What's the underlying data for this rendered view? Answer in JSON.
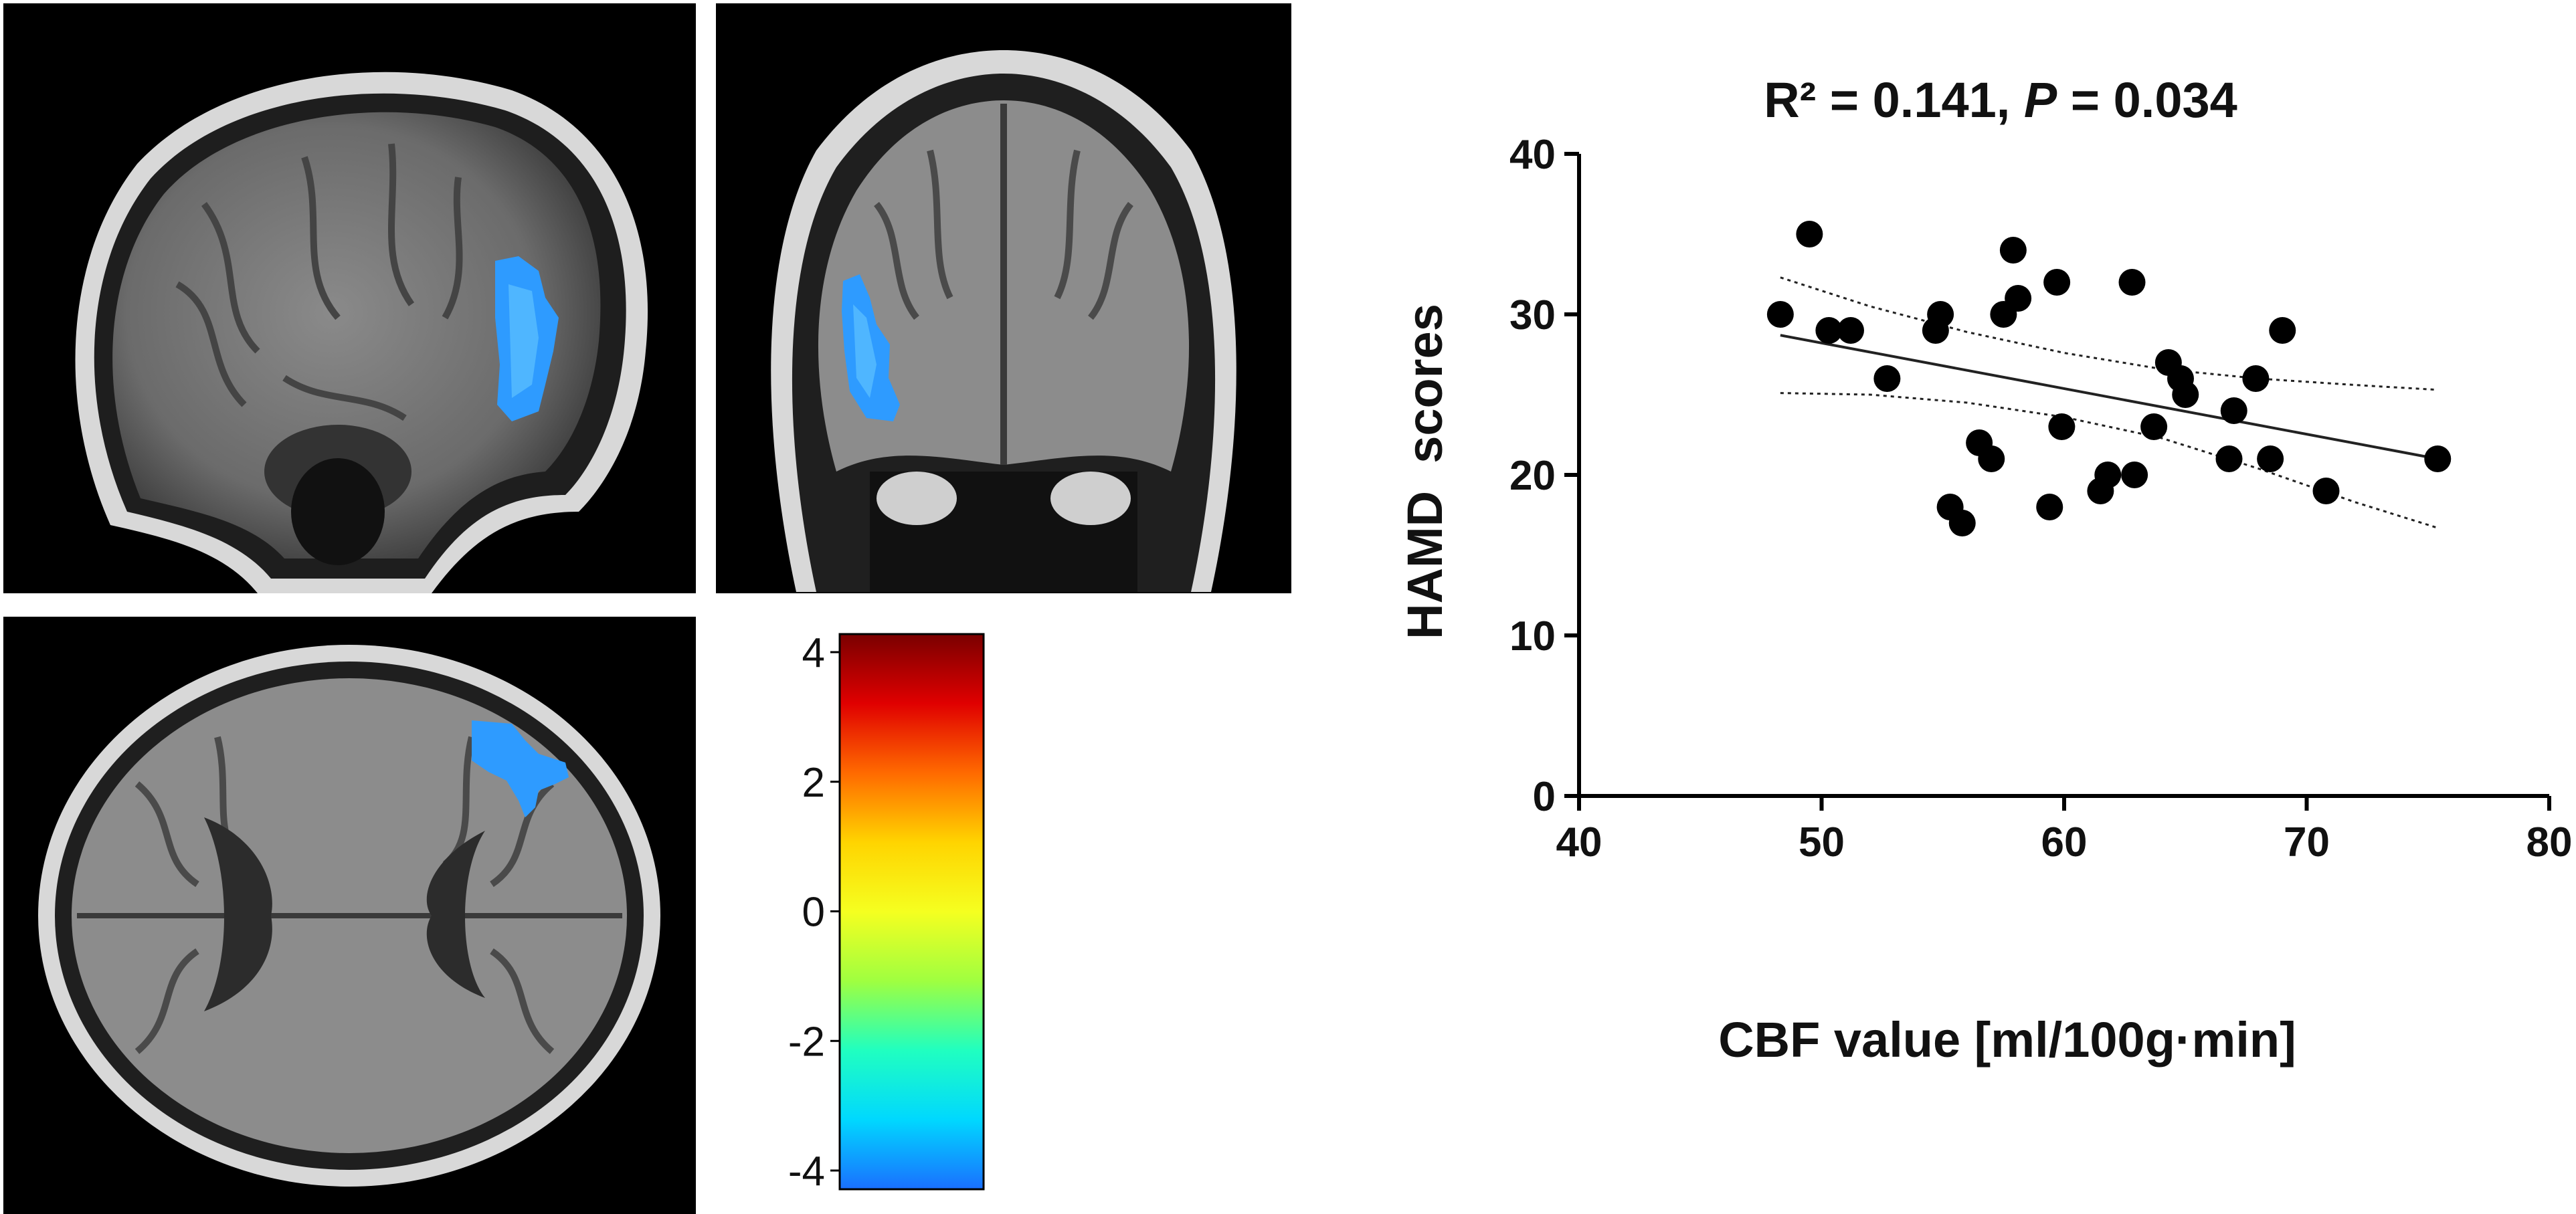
{
  "brain_views": [
    {
      "view": "sagittal"
    },
    {
      "view": "coronal"
    },
    {
      "view": "axial"
    }
  ],
  "colorbar": {
    "ticks": [
      "4",
      "2",
      "0",
      "-2",
      "-4"
    ],
    "colors": [
      "#7a0000",
      "#e00000",
      "#ff6a00",
      "#ffd400",
      "#f5ff20",
      "#9fff40",
      "#20ffc0",
      "#00d8ff",
      "#1a6fff"
    ]
  },
  "chart_data": {
    "type": "scatter",
    "title_main": "R² = 0.141, ",
    "title_italic": "P",
    "title_tail": " = 0.034",
    "xlabel": "CBF value [ml/100g·min]",
    "ylabel": "HAMD  scores",
    "xlim": [
      40,
      80
    ],
    "ylim": [
      0,
      40
    ],
    "xticks": [
      40,
      50,
      60,
      70,
      80
    ],
    "yticks": [
      0,
      10,
      20,
      30,
      40
    ],
    "points": [
      {
        "x": 48.3,
        "y": 30
      },
      {
        "x": 49.5,
        "y": 35
      },
      {
        "x": 50.3,
        "y": 29
      },
      {
        "x": 51.2,
        "y": 29
      },
      {
        "x": 52.7,
        "y": 26
      },
      {
        "x": 54.7,
        "y": 29
      },
      {
        "x": 54.9,
        "y": 30
      },
      {
        "x": 55.3,
        "y": 18
      },
      {
        "x": 55.8,
        "y": 17
      },
      {
        "x": 56.5,
        "y": 22
      },
      {
        "x": 57.0,
        "y": 21
      },
      {
        "x": 57.5,
        "y": 30
      },
      {
        "x": 57.9,
        "y": 34
      },
      {
        "x": 58.1,
        "y": 31
      },
      {
        "x": 59.4,
        "y": 18
      },
      {
        "x": 59.7,
        "y": 32
      },
      {
        "x": 59.9,
        "y": 23
      },
      {
        "x": 61.5,
        "y": 19
      },
      {
        "x": 61.8,
        "y": 20
      },
      {
        "x": 62.8,
        "y": 32
      },
      {
        "x": 62.9,
        "y": 20
      },
      {
        "x": 63.7,
        "y": 23
      },
      {
        "x": 64.3,
        "y": 27
      },
      {
        "x": 64.8,
        "y": 26
      },
      {
        "x": 65.0,
        "y": 25
      },
      {
        "x": 66.8,
        "y": 21
      },
      {
        "x": 67.0,
        "y": 24
      },
      {
        "x": 67.9,
        "y": 26
      },
      {
        "x": 68.5,
        "y": 21
      },
      {
        "x": 69.0,
        "y": 29
      },
      {
        "x": 70.8,
        "y": 19
      },
      {
        "x": 75.4,
        "y": 21
      }
    ],
    "fit_line": {
      "x": [
        48.3,
        75.4
      ],
      "y": [
        28.7,
        21.0
      ]
    },
    "ci_upper": {
      "x": [
        48.3,
        52,
        56,
        60,
        64,
        68,
        72,
        75.4
      ],
      "y": [
        32.3,
        30.5,
        28.9,
        27.6,
        26.6,
        26.0,
        25.6,
        25.3
      ]
    },
    "ci_lower": {
      "x": [
        48.3,
        52,
        56,
        60,
        64,
        68,
        72,
        75.4
      ],
      "y": [
        25.1,
        25.0,
        24.5,
        23.6,
        22.3,
        20.4,
        18.3,
        16.7
      ]
    },
    "grid": false,
    "legend": "none"
  }
}
